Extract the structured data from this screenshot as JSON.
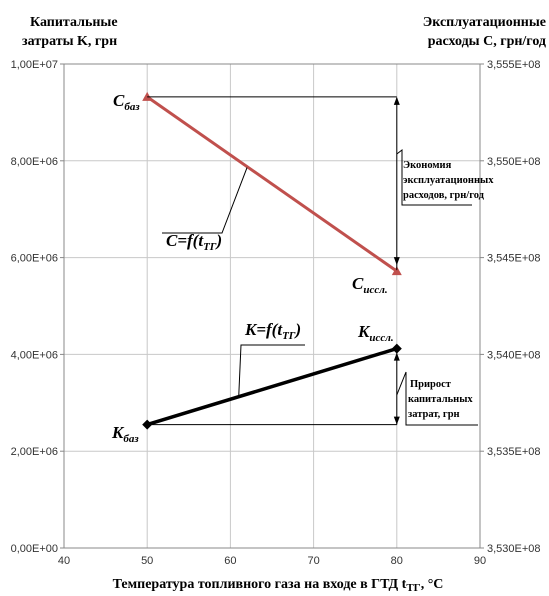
{
  "chart_data": {
    "type": "line",
    "left_axis_title": [
      "Капитальные",
      "затраты K, грн"
    ],
    "right_axis_title": [
      "Эксплуатационные",
      "расходы C, грн/год"
    ],
    "x_label": "Температура топливного газа на входе в ГТД t",
    "x_label_sub": "ТГ",
    "x_label_unit": ", °C",
    "x_ticks": [
      "40",
      "50",
      "60",
      "70",
      "80",
      "90"
    ],
    "x_range": [
      40,
      90
    ],
    "y_left_ticks": [
      "0,00E+00",
      "2,00E+06",
      "4,00E+06",
      "6,00E+06",
      "8,00E+06",
      "1,00E+07"
    ],
    "y_left_range": [
      0,
      10000000
    ],
    "y_right_ticks": [
      "3,530E+08",
      "3,535E+08",
      "3,540E+08",
      "3,545E+08",
      "3,550E+08",
      "3,555E+08"
    ],
    "y_right_range": [
      353000000,
      355500000
    ],
    "grid": true,
    "series": [
      {
        "key": "C",
        "axis": "right",
        "color": "#c0504d",
        "marker": "triangle",
        "x": [
          50,
          80
        ],
        "y": [
          355330000,
          354430000
        ]
      },
      {
        "key": "K",
        "axis": "left",
        "color": "#000000",
        "marker": "diamond",
        "x": [
          50,
          80
        ],
        "y": [
          2550000,
          4120000
        ]
      }
    ],
    "annotations": {
      "c_start": {
        "main": "C",
        "sub": "баз"
      },
      "c_end": {
        "main": "C",
        "sub": "иссл."
      },
      "k_start": {
        "main": "K",
        "sub": "баз"
      },
      "k_end": {
        "main": "K",
        "sub": "иссл."
      },
      "c_func": {
        "main": "C=f(t",
        "sub": "ТГ",
        "tail": ")"
      },
      "k_func": {
        "main": "K=f(t",
        "sub": "ТГ",
        "tail": ")"
      },
      "economy_note": [
        "Экономия",
        "эксплуатационных",
        "расходов, грн/год"
      ],
      "increase_note": [
        "Прирост",
        "капитальных",
        "затрат, грн"
      ]
    }
  }
}
